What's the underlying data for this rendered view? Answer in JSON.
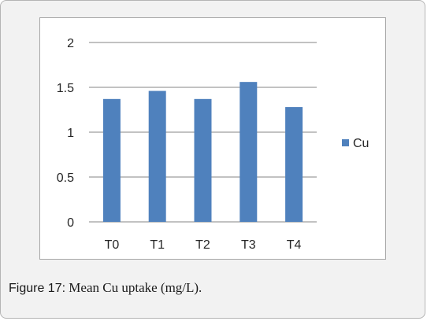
{
  "chart_data": {
    "type": "bar",
    "categories": [
      "T0",
      "T1",
      "T2",
      "T3",
      "T4"
    ],
    "series": [
      {
        "name": "Cu",
        "values": [
          1.37,
          1.46,
          1.37,
          1.56,
          1.28
        ],
        "color": "#4f81bd"
      }
    ],
    "ylim": [
      0,
      2
    ],
    "yticks": [
      "0",
      "0.5",
      "1",
      "1.5",
      "2"
    ],
    "yticks_values": [
      0,
      0.5,
      1,
      1.5,
      2
    ],
    "grid": true,
    "legend": "right"
  },
  "caption": {
    "label": "Figure 17:",
    "text": " Mean Cu uptake (mg/L)."
  }
}
